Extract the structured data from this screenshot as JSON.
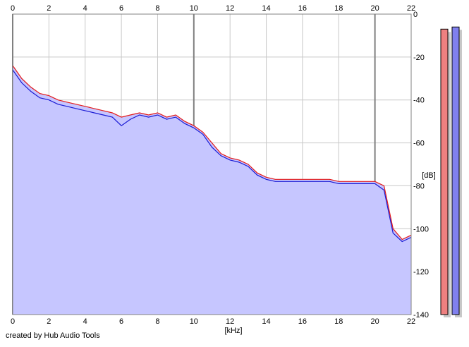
{
  "chart_data": {
    "type": "line",
    "xlabel": "[kHz]",
    "ylabel": "[dB]",
    "xlim": [
      0,
      22
    ],
    "ylim": [
      -140,
      0
    ],
    "x_ticks": [
      0,
      2,
      4,
      6,
      8,
      10,
      12,
      14,
      16,
      18,
      20,
      22
    ],
    "y_ticks": [
      0,
      -20,
      -40,
      -60,
      -80,
      -100,
      -120,
      -140
    ],
    "y_tick_labels": [
      "0",
      "-20",
      "-40",
      "-60",
      "-80",
      "-100",
      "-120",
      "-140"
    ],
    "grid": true,
    "series": [
      {
        "color": "#e41a1a",
        "x": [
          0,
          0.5,
          1,
          1.5,
          2,
          2.5,
          3,
          3.5,
          4,
          4.5,
          5,
          5.5,
          6,
          6.5,
          7,
          7.5,
          8,
          8.5,
          9,
          9.5,
          10,
          10.5,
          11,
          11.5,
          12,
          12.5,
          13,
          13.5,
          14,
          14.5,
          15,
          15.5,
          16,
          16.5,
          17,
          17.5,
          18,
          18.5,
          19,
          19.5,
          20,
          20.5,
          21,
          21.5,
          22
        ],
        "y": [
          -24,
          -30,
          -34,
          -37,
          -38,
          -40,
          -41,
          -42,
          -43,
          -44,
          -45,
          -46,
          -48,
          -47,
          -46,
          -47,
          -46,
          -48,
          -47,
          -50,
          -52,
          -55,
          -60,
          -65,
          -67,
          -68,
          -70,
          -74,
          -76,
          -77,
          -77,
          -77,
          -77,
          -77,
          -77,
          -77,
          -78,
          -78,
          -78,
          -78,
          -78,
          -80,
          -100,
          -105,
          -103
        ]
      },
      {
        "color": "#1a1ad4",
        "x": [
          0,
          0.5,
          1,
          1.5,
          2,
          2.5,
          3,
          3.5,
          4,
          4.5,
          5,
          5.5,
          6,
          6.5,
          7,
          7.5,
          8,
          8.5,
          9,
          9.5,
          10,
          10.5,
          11,
          11.5,
          12,
          12.5,
          13,
          13.5,
          14,
          14.5,
          15,
          15.5,
          16,
          16.5,
          17,
          17.5,
          18,
          18.5,
          19,
          19.5,
          20,
          20.5,
          21,
          21.5,
          22
        ],
        "y": [
          -26,
          -32,
          -36,
          -39,
          -40,
          -42,
          -43,
          -44,
          -45,
          -46,
          -47,
          -48,
          -52,
          -49,
          -47,
          -48,
          -47,
          -49,
          -48,
          -51,
          -53,
          -56,
          -62,
          -66,
          -68,
          -69,
          -71,
          -75,
          -77,
          -78,
          -78,
          -78,
          -78,
          -78,
          -78,
          -78,
          -79,
          -79,
          -79,
          -79,
          -79,
          -82,
          -102,
          -106,
          -104
        ]
      }
    ],
    "fill_color": "#c6c6ff",
    "level_meters": [
      {
        "color": "#ee8080",
        "value_db": -7
      },
      {
        "color": "#8080ee",
        "value_db": -6
      }
    ]
  },
  "footer": {
    "credit": "created by Hub Audio Tools"
  }
}
